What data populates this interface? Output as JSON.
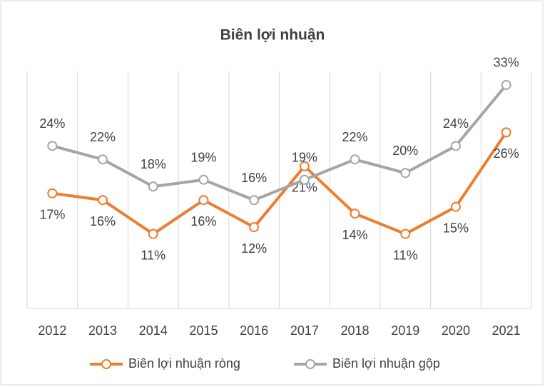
{
  "chart_data": {
    "type": "line",
    "title": "Biên lợi nhuận",
    "categories": [
      "2012",
      "2013",
      "2014",
      "2015",
      "2016",
      "2017",
      "2018",
      "2019",
      "2020",
      "2021"
    ],
    "series": [
      {
        "name": "Biên lợi nhuận ròng",
        "color": "#ed7d31",
        "values": [
          17,
          16,
          11,
          16,
          12,
          21,
          14,
          11,
          15,
          26
        ],
        "value_labels": [
          "17%",
          "16%",
          "11%",
          "16%",
          "12%",
          "21%",
          "14%",
          "11%",
          "15%",
          "26%"
        ]
      },
      {
        "name": "Biên lợi nhuận gộp",
        "color": "#a5a5a5",
        "values": [
          24,
          22,
          18,
          19,
          16,
          19,
          22,
          20,
          24,
          33
        ],
        "value_labels": [
          "24%",
          "22%",
          "18%",
          "19%",
          "16%",
          "19%",
          "22%",
          "20%",
          "24%",
          "33%"
        ]
      }
    ],
    "ylim": [
      0,
      35
    ],
    "grid": true
  }
}
